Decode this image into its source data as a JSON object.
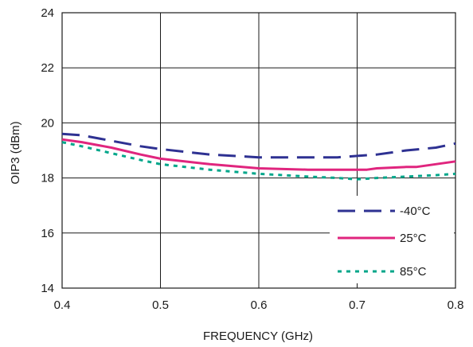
{
  "chart_data": {
    "type": "line",
    "title": "",
    "xlabel": "FREQUENCY (GHz)",
    "ylabel": "OIP3 (dBm)",
    "xlim": [
      0.4,
      0.8
    ],
    "ylim": [
      14,
      24
    ],
    "x_ticks": [
      "0.4",
      "0.5",
      "0.6",
      "0.7",
      "0.8"
    ],
    "y_ticks": [
      "14",
      "16",
      "18",
      "20",
      "22",
      "24"
    ],
    "grid": true,
    "legend_position": "bottom-right",
    "series": [
      {
        "name": "-40°C",
        "color": "#2e3192",
        "dash": "dashed",
        "x": [
          0.4,
          0.42,
          0.45,
          0.48,
          0.5,
          0.55,
          0.6,
          0.65,
          0.68,
          0.7,
          0.72,
          0.75,
          0.78,
          0.8
        ],
        "y": [
          19.6,
          19.55,
          19.35,
          19.15,
          19.05,
          18.85,
          18.75,
          18.75,
          18.75,
          18.8,
          18.85,
          19.0,
          19.1,
          19.25
        ]
      },
      {
        "name": "25°C",
        "color": "#e0257e",
        "dash": "solid",
        "x": [
          0.4,
          0.42,
          0.45,
          0.48,
          0.5,
          0.55,
          0.6,
          0.65,
          0.68,
          0.7,
          0.71,
          0.72,
          0.75,
          0.76,
          0.78,
          0.8
        ],
        "y": [
          19.4,
          19.3,
          19.1,
          18.85,
          18.7,
          18.5,
          18.35,
          18.3,
          18.3,
          18.3,
          18.3,
          18.35,
          18.4,
          18.4,
          18.5,
          18.6
        ]
      },
      {
        "name": "85°C",
        "color": "#00a68a",
        "dash": "dotted",
        "x": [
          0.4,
          0.42,
          0.45,
          0.48,
          0.5,
          0.55,
          0.6,
          0.65,
          0.68,
          0.7,
          0.72,
          0.75,
          0.78,
          0.8
        ],
        "y": [
          19.3,
          19.15,
          18.9,
          18.65,
          18.5,
          18.3,
          18.15,
          18.05,
          18.0,
          17.95,
          18.0,
          18.05,
          18.1,
          18.15
        ]
      }
    ]
  }
}
